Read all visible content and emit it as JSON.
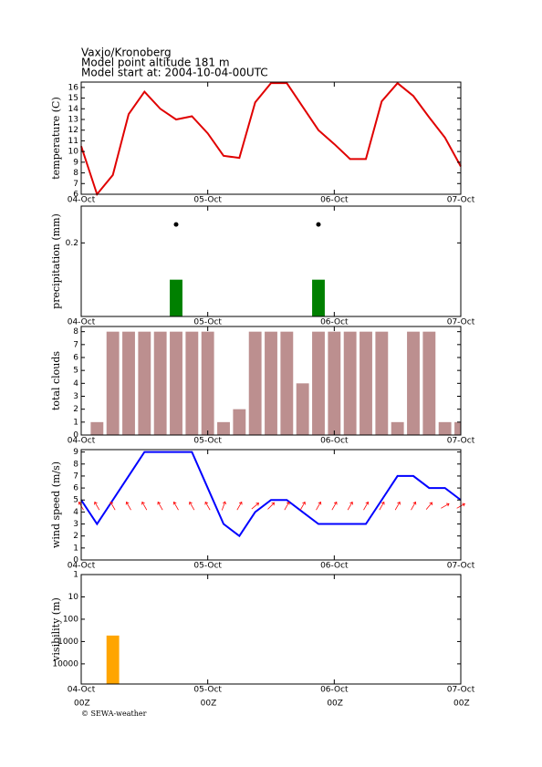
{
  "header": [
    "Vaxjo/Kronoberg",
    "Model point altitude  181 m",
    "Model start at: 2004-10-04-00UTC"
  ],
  "footer": "© SEWA-weather",
  "chart_data": [
    {
      "type": "line",
      "ylabel": "temperature (C)",
      "color": "#e00000",
      "x": [
        0,
        3,
        6,
        9,
        12,
        15,
        18,
        21,
        24,
        27,
        30,
        33,
        36,
        39,
        42,
        45,
        48,
        51,
        54,
        57,
        60,
        63,
        66,
        69,
        72
      ],
      "values": [
        10.5,
        6,
        7.8,
        13.5,
        15.6,
        14,
        13,
        13.3,
        11.7,
        9.6,
        9.4,
        14.6,
        16.4,
        16.4,
        14.2,
        12,
        10.7,
        9.3,
        9.3,
        14.7,
        16.4,
        15.2,
        13.2,
        11.3,
        8.6
      ],
      "xlim": [
        0,
        72
      ],
      "xticks": [
        {
          "value": 0,
          "label": "04-Oct"
        },
        {
          "value": 24,
          "label": "05-Oct"
        },
        {
          "value": 48,
          "label": "06-Oct"
        },
        {
          "value": 72,
          "label": "07-Oct"
        }
      ],
      "ylim": [
        6,
        16.5
      ],
      "yticks": [
        6,
        7,
        8,
        9,
        10,
        11,
        12,
        13,
        14,
        15,
        16
      ]
    },
    {
      "type": "bar",
      "ylabel": "precipitation (mm)",
      "color": "#008000",
      "x": [
        18,
        45
      ],
      "values": [
        0.1,
        0.1
      ],
      "points": {
        "x": [
          18,
          45
        ],
        "values": [
          0.25,
          0.25
        ],
        "color": "#000000"
      },
      "xlim": [
        0,
        72
      ],
      "xticks": [
        {
          "value": 0,
          "label": "04-Oct"
        },
        {
          "value": 24,
          "label": "05-Oct"
        },
        {
          "value": 48,
          "label": "06-Oct"
        },
        {
          "value": 72,
          "label": "07-Oct"
        }
      ],
      "ylim": [
        0,
        0.3
      ],
      "yticks": [
        0.2
      ]
    },
    {
      "type": "bar",
      "ylabel": "total clouds",
      "color": "#bc8f8f",
      "x": [
        3,
        6,
        9,
        12,
        15,
        18,
        21,
        24,
        27,
        30,
        33,
        36,
        39,
        42,
        45,
        48,
        51,
        54,
        57,
        60,
        63,
        66,
        69,
        72
      ],
      "values": [
        1,
        8,
        8,
        8,
        8,
        8,
        8,
        8,
        1,
        2,
        8,
        8,
        8,
        4,
        8,
        8,
        8,
        8,
        8,
        1,
        8,
        8,
        1,
        1
      ],
      "xlim": [
        0,
        72
      ],
      "xticks": [
        {
          "value": 0,
          "label": "04-Oct"
        },
        {
          "value": 24,
          "label": "05-Oct"
        },
        {
          "value": 48,
          "label": "06-Oct"
        },
        {
          "value": 72,
          "label": "07-Oct"
        }
      ],
      "ylim": [
        0,
        8.4
      ],
      "yticks": [
        0,
        1,
        2,
        3,
        4,
        5,
        6,
        7,
        8
      ]
    },
    {
      "type": "line",
      "ylabel": "wind speed (m/s)",
      "color": "#0000ff",
      "x": [
        0,
        3,
        6,
        9,
        12,
        15,
        18,
        21,
        24,
        27,
        30,
        33,
        36,
        39,
        42,
        45,
        48,
        51,
        54,
        57,
        60,
        63,
        66,
        69,
        72
      ],
      "values": [
        5,
        3,
        5,
        7,
        9,
        9,
        9,
        9,
        6,
        3,
        2,
        4,
        5,
        5,
        4,
        3,
        3,
        3,
        3,
        5,
        7,
        7,
        6,
        6,
        5
      ],
      "arrows": {
        "x": [
          0,
          3,
          6,
          9,
          12,
          15,
          18,
          21,
          24,
          27,
          30,
          33,
          36,
          39,
          42,
          45,
          48,
          51,
          54,
          57,
          60,
          63,
          66,
          69,
          72
        ],
        "values": [
          330,
          330,
          330,
          330,
          330,
          330,
          330,
          330,
          330,
          20,
          30,
          50,
          45,
          30,
          30,
          30,
          30,
          30,
          30,
          30,
          30,
          30,
          40,
          60,
          60
        ],
        "color": "#ff0000",
        "level": 4.5
      },
      "xlim": [
        0,
        72
      ],
      "xticks": [
        {
          "value": 0,
          "label": "04-Oct"
        },
        {
          "value": 24,
          "label": "05-Oct"
        },
        {
          "value": 48,
          "label": "06-Oct"
        },
        {
          "value": 72,
          "label": "07-Oct"
        }
      ],
      "ylim": [
        0,
        9.2
      ],
      "yticks": [
        0,
        1,
        2,
        3,
        4,
        5,
        6,
        7,
        8,
        9
      ]
    },
    {
      "type": "bar",
      "ylabel": "visibility (m)",
      "color": "#ffa500",
      "log_scale": true,
      "x": [
        6
      ],
      "values": [
        540
      ],
      "xlim": [
        0,
        72
      ],
      "xticks": [
        {
          "value": 0,
          "label": "04-Oct"
        },
        {
          "value": 24,
          "label": "05-Oct"
        },
        {
          "value": 48,
          "label": "06-Oct"
        },
        {
          "value": 72,
          "label": "07-Oct"
        }
      ],
      "x_sublabels": [
        "00Z",
        "00Z",
        "00Z",
        "00Z"
      ],
      "ylim": [
        80000,
        1
      ],
      "yticks": [
        1,
        10,
        100,
        1000,
        10000
      ]
    }
  ]
}
